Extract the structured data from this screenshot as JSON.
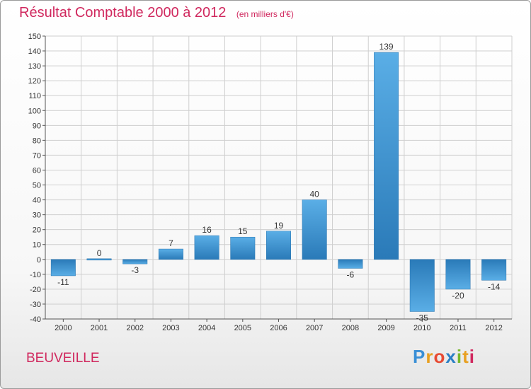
{
  "header": {
    "title": "Résultat Comptable 2000 à 2012",
    "subtitle": "(en milliers d'€)"
  },
  "footer": {
    "commune": "BEUVEILLE",
    "logo_letters": [
      "P",
      "r",
      "o",
      "x",
      "i",
      "t",
      "i"
    ],
    "logo_colors": [
      "#3a8fd6",
      "#e8a020",
      "#e74a33",
      "#2a7fc4",
      "#77b82a",
      "#e8a020",
      "#d0285e"
    ]
  },
  "colors": {
    "title": "#d0285e",
    "bar_light": "#5aaee6",
    "bar_dark": "#2a7ab8",
    "grid": "#cfcfcf"
  },
  "chart_data": {
    "type": "bar",
    "title": "Résultat Comptable 2000 à 2012",
    "subtitle": "(en milliers d'€)",
    "xlabel": "",
    "ylabel": "",
    "categories": [
      "2000",
      "2001",
      "2002",
      "2003",
      "2004",
      "2005",
      "2006",
      "2007",
      "2008",
      "2009",
      "2010",
      "2011",
      "2012"
    ],
    "values": [
      -11,
      0,
      -3,
      7,
      16,
      15,
      19,
      40,
      -6,
      139,
      -35,
      -20,
      -14
    ],
    "labels": [
      "-11",
      "0",
      "-3",
      "7",
      "16",
      "15",
      "19",
      "40",
      "-6",
      "139",
      "-35",
      "-20",
      "-14"
    ],
    "ylim": [
      -40,
      150
    ],
    "yticks": [
      -40,
      -30,
      -20,
      -10,
      0,
      10,
      20,
      30,
      40,
      50,
      60,
      70,
      80,
      90,
      100,
      110,
      120,
      130,
      140,
      150
    ],
    "grid": true
  }
}
